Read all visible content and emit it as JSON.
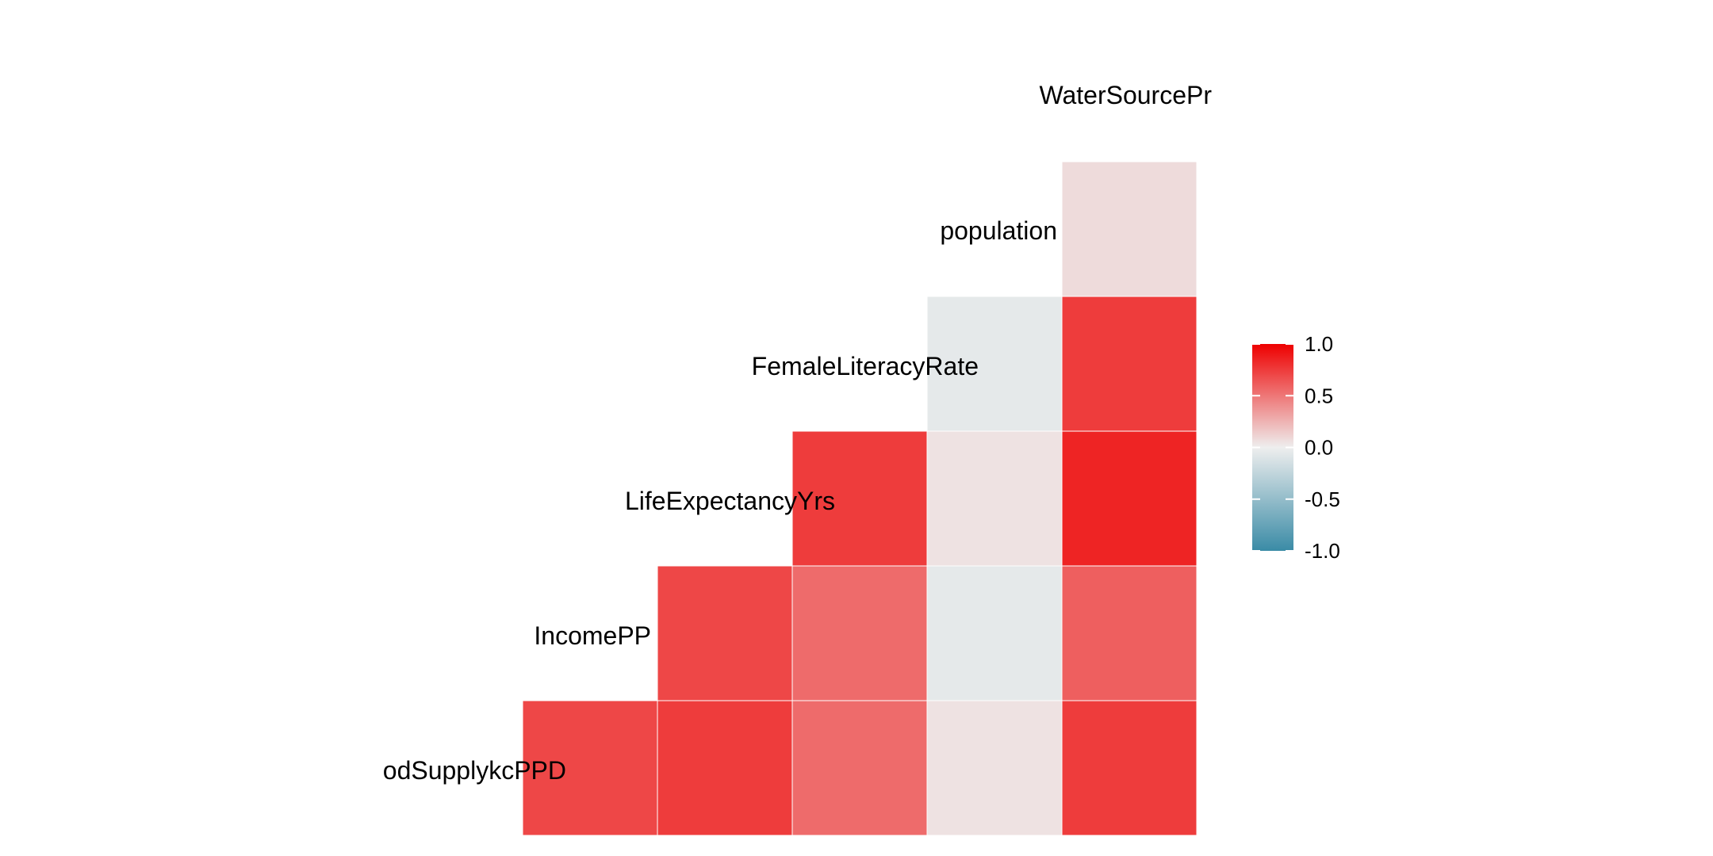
{
  "chart_data": {
    "type": "heatmap",
    "title": "",
    "variables": [
      "FoodSupplykcPPD",
      "IncomePP",
      "LifeExpectancyYrs",
      "FemaleLiteracyRate",
      "population",
      "WaterSourcePr"
    ],
    "variable_labels_shown": [
      "odSupplykcPPD",
      "IncomePP",
      "LifeExpectancyYrs",
      "FemaleLiteracyRate",
      "population",
      "WaterSourcePr"
    ],
    "layout": "lower-triangle",
    "cells": [
      {
        "row": "IncomePP",
        "col": "FoodSupplykcPPD",
        "value": 0.7
      },
      {
        "row": "LifeExpectancyYrs",
        "col": "FoodSupplykcPPD",
        "value": 0.75
      },
      {
        "row": "LifeExpectancyYrs",
        "col": "IncomePP",
        "value": 0.7
      },
      {
        "row": "FemaleLiteracyRate",
        "col": "FoodSupplykcPPD",
        "value": 0.55
      },
      {
        "row": "FemaleLiteracyRate",
        "col": "IncomePP",
        "value": 0.55
      },
      {
        "row": "FemaleLiteracyRate",
        "col": "LifeExpectancyYrs",
        "value": 0.75
      },
      {
        "row": "population",
        "col": "FoodSupplykcPPD",
        "value": 0.05
      },
      {
        "row": "population",
        "col": "IncomePP",
        "value": -0.05
      },
      {
        "row": "population",
        "col": "LifeExpectancyYrs",
        "value": 0.05
      },
      {
        "row": "population",
        "col": "FemaleLiteracyRate",
        "value": -0.05
      },
      {
        "row": "WaterSourcePr",
        "col": "FoodSupplykcPPD",
        "value": 0.75
      },
      {
        "row": "WaterSourcePr",
        "col": "IncomePP",
        "value": 0.6
      },
      {
        "row": "WaterSourcePr",
        "col": "LifeExpectancyYrs",
        "value": 0.85
      },
      {
        "row": "WaterSourcePr",
        "col": "FemaleLiteracyRate",
        "value": 0.75
      },
      {
        "row": "WaterSourcePr",
        "col": "population",
        "value": 0.08
      }
    ],
    "legend": {
      "position": "right",
      "min": -1.0,
      "max": 1.0,
      "ticks": [
        1.0,
        0.5,
        0.0,
        -0.5,
        -1.0
      ],
      "tick_labels": [
        "1.0",
        "0.5",
        "0.0",
        "-0.5",
        "-1.0"
      ],
      "colors": {
        "low": "#3A8BA6",
        "mid": "#EEEEEE",
        "high": "#EE0000"
      }
    },
    "grid": false
  }
}
